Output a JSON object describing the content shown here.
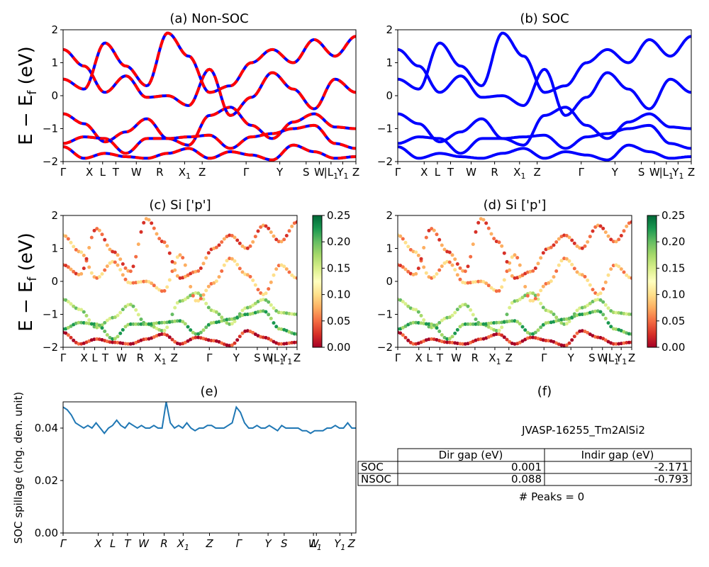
{
  "colors": {
    "nonsoc_line": "#ff0000",
    "nonsoc_dash": "#0000ff",
    "soc_line": "#0000ff",
    "spillage_line": "#1f77b4",
    "colormap": [
      "#a50026",
      "#d73027",
      "#f46d43",
      "#fdae61",
      "#fee08b",
      "#ffffbf",
      "#d9ef8b",
      "#a6d96a",
      "#66bd63",
      "#1a9850",
      "#006837"
    ]
  },
  "kpath_labels": [
    "Γ",
    "X",
    "L",
    "T",
    "W",
    "R",
    "X1",
    "Z",
    "Γ",
    "Y",
    "S",
    "W",
    "|L1",
    "Y1",
    "Z"
  ],
  "panels": {
    "a": {
      "title": "(a) Non-SOC"
    },
    "b": {
      "title": "(b) SOC"
    },
    "c": {
      "title": "(c)  Si ['p']"
    },
    "d": {
      "title": "(d) Si ['p']"
    },
    "e": {
      "title": "(e)"
    },
    "f": {
      "title": "(f)"
    }
  },
  "y_label_energy": "E − E_f (eV)",
  "chart_data": [
    {
      "panel": "a",
      "type": "line",
      "title": "(a) Non-SOC",
      "ylabel": "E − E_f (eV)",
      "ylim": [
        -2,
        2
      ],
      "yticks": [
        "2",
        "1",
        "0",
        "−1",
        "−2"
      ],
      "xtick_labels": [
        "Γ",
        "X",
        "L",
        "T",
        "W",
        "R",
        "X1",
        "Z",
        "Γ",
        "Y",
        "S",
        "W",
        "|L1",
        "Y1",
        "Z"
      ],
      "series": [
        {
          "values": [
            -0.55,
            -0.85,
            -1.4,
            -1.1,
            -0.7,
            -1.3,
            -1.5,
            -0.6,
            -0.35,
            -0.9,
            -1.3,
            -0.8,
            -0.55,
            -0.95,
            -1.0
          ]
        },
        {
          "values": [
            -1.45,
            -1.25,
            -1.3,
            -1.75,
            -1.3,
            -1.3,
            -1.25,
            -1.2,
            -1.6,
            -1.25,
            -1.15,
            -1.0,
            -0.9,
            -1.45,
            -1.6
          ]
        },
        {
          "values": [
            1.4,
            0.9,
            0.1,
            0.6,
            -0.05,
            0.0,
            -0.3,
            0.8,
            -0.6,
            -0.05,
            0.7,
            0.2,
            -0.4,
            0.5,
            0.1
          ]
        },
        {
          "values": [
            0.5,
            0.2,
            1.6,
            0.9,
            0.3,
            1.9,
            1.2,
            0.1,
            0.3,
            1.0,
            1.4,
            1.0,
            1.7,
            1.2,
            1.8
          ]
        },
        {
          "values": [
            -1.55,
            -1.9,
            -1.75,
            -1.85,
            -1.9,
            -1.75,
            -1.6,
            -1.9,
            -1.7,
            -1.8,
            -1.95,
            -1.5,
            -1.7,
            -1.9,
            -1.85
          ]
        }
      ]
    },
    {
      "panel": "b",
      "type": "line",
      "title": "(b) SOC",
      "ylim": [
        -2,
        2
      ],
      "yticks": [
        "2",
        "1",
        "0",
        "−1",
        "−2"
      ],
      "xtick_labels": [
        "Γ",
        "X",
        "L",
        "T",
        "W",
        "R",
        "X1",
        "Z",
        "Γ",
        "Y",
        "S",
        "W",
        "|L1",
        "Y1",
        "Z"
      ],
      "series": [
        {
          "values": [
            -0.55,
            -0.85,
            -1.4,
            -1.1,
            -0.7,
            -1.3,
            -1.5,
            -0.6,
            -0.35,
            -0.9,
            -1.3,
            -0.8,
            -0.55,
            -0.95,
            -1.0
          ]
        },
        {
          "values": [
            -1.45,
            -1.25,
            -1.3,
            -1.75,
            -1.3,
            -1.3,
            -1.25,
            -1.2,
            -1.6,
            -1.25,
            -1.15,
            -1.0,
            -0.9,
            -1.45,
            -1.6
          ]
        },
        {
          "values": [
            1.4,
            0.9,
            0.1,
            0.6,
            -0.05,
            0.0,
            -0.3,
            0.8,
            -0.6,
            -0.05,
            0.7,
            0.2,
            -0.4,
            0.5,
            0.1
          ]
        },
        {
          "values": [
            0.5,
            0.2,
            1.6,
            0.9,
            0.3,
            1.9,
            1.2,
            0.1,
            0.3,
            1.0,
            1.4,
            1.0,
            1.7,
            1.2,
            1.8
          ]
        },
        {
          "values": [
            -1.55,
            -1.9,
            -1.75,
            -1.85,
            -1.9,
            -1.75,
            -1.6,
            -1.9,
            -1.7,
            -1.8,
            -1.95,
            -1.5,
            -1.7,
            -1.9,
            -1.85
          ]
        }
      ]
    },
    {
      "panel": "c",
      "type": "scatter",
      "title": "(c)  Si ['p']",
      "ylabel": "E − E_f (eV)",
      "ylim": [
        -2,
        2
      ],
      "yticks": [
        "2",
        "1",
        "0",
        "−1",
        "−2"
      ],
      "xtick_labels": [
        "Γ",
        "X",
        "L",
        "T",
        "W",
        "R",
        "X1",
        "Z",
        "Γ",
        "Y",
        "S",
        "W",
        "|L1",
        "Y1",
        "Z"
      ],
      "colorbar": {
        "range": [
          0,
          0.25
        ],
        "ticks": [
          "0.25",
          "0.20",
          "0.15",
          "0.10",
          "0.05",
          "0.00"
        ]
      },
      "bands": [
        {
          "values": [
            -0.55,
            -0.85,
            -1.4,
            -1.1,
            -0.7,
            -1.3,
            -1.5,
            -0.6,
            -0.35,
            -0.9,
            -1.3,
            -0.8,
            -0.55,
            -0.95,
            -1.0
          ],
          "weight": 0.17
        },
        {
          "values": [
            -1.45,
            -1.25,
            -1.3,
            -1.75,
            -1.3,
            -1.3,
            -1.25,
            -1.2,
            -1.6,
            -1.25,
            -1.15,
            -1.0,
            -0.9,
            -1.45,
            -1.6
          ],
          "weight": 0.2
        },
        {
          "values": [
            1.4,
            0.9,
            0.1,
            0.6,
            -0.05,
            0.0,
            -0.3,
            0.8,
            -0.6,
            -0.05,
            0.7,
            0.2,
            -0.4,
            0.5,
            0.1
          ],
          "weight": 0.08
        },
        {
          "values": [
            0.5,
            0.2,
            1.6,
            0.9,
            0.3,
            1.9,
            1.2,
            0.1,
            0.3,
            1.0,
            1.4,
            1.0,
            1.7,
            1.2,
            1.8
          ],
          "weight": 0.05
        },
        {
          "values": [
            -1.55,
            -1.9,
            -1.75,
            -1.85,
            -1.9,
            -1.75,
            -1.6,
            -1.9,
            -1.7,
            -1.8,
            -1.95,
            -1.5,
            -1.7,
            -1.9,
            -1.85
          ],
          "weight": 0.02
        }
      ]
    },
    {
      "panel": "d",
      "type": "scatter",
      "title": "(d) Si ['p']",
      "ylim": [
        -2,
        2
      ],
      "yticks": [
        "2",
        "1",
        "0",
        "−1",
        "−2"
      ],
      "xtick_labels": [
        "Γ",
        "X",
        "L",
        "T",
        "W",
        "R",
        "X1",
        "Z",
        "Γ",
        "Y",
        "S",
        "W",
        "|L1",
        "Y1",
        "Z"
      ],
      "colorbar": {
        "range": [
          0,
          0.25
        ],
        "ticks": [
          "0.25",
          "0.20",
          "0.15",
          "0.10",
          "0.05",
          "0.00"
        ]
      },
      "bands": [
        {
          "values": [
            -0.55,
            -0.85,
            -1.4,
            -1.1,
            -0.7,
            -1.3,
            -1.5,
            -0.6,
            -0.35,
            -0.9,
            -1.3,
            -0.8,
            -0.55,
            -0.95,
            -1.0
          ],
          "weight": 0.17
        },
        {
          "values": [
            -1.45,
            -1.25,
            -1.3,
            -1.75,
            -1.3,
            -1.3,
            -1.25,
            -1.2,
            -1.6,
            -1.25,
            -1.15,
            -1.0,
            -0.9,
            -1.45,
            -1.6
          ],
          "weight": 0.2
        },
        {
          "values": [
            1.4,
            0.9,
            0.1,
            0.6,
            -0.05,
            0.0,
            -0.3,
            0.8,
            -0.6,
            -0.05,
            0.7,
            0.2,
            -0.4,
            0.5,
            0.1
          ],
          "weight": 0.08
        },
        {
          "values": [
            0.5,
            0.2,
            1.6,
            0.9,
            0.3,
            1.9,
            1.2,
            0.1,
            0.3,
            1.0,
            1.4,
            1.0,
            1.7,
            1.2,
            1.8
          ],
          "weight": 0.05
        },
        {
          "values": [
            -1.55,
            -1.9,
            -1.75,
            -1.85,
            -1.9,
            -1.75,
            -1.6,
            -1.9,
            -1.7,
            -1.8,
            -1.95,
            -1.5,
            -1.7,
            -1.9,
            -1.85
          ],
          "weight": 0.02
        }
      ]
    },
    {
      "panel": "e",
      "type": "line",
      "title": "(e)",
      "ylabel": "SOC spillage (chg. den. unit)",
      "ylim": [
        0,
        0.05
      ],
      "yticks": [
        "0.04",
        "0.02",
        "0.00"
      ],
      "xtick_labels": [
        "Γ",
        "X",
        "L",
        "T",
        "W",
        "R",
        "X1",
        "Z",
        "Γ",
        "Y",
        "S",
        "W",
        "L1",
        "Y1",
        "Z"
      ],
      "series": [
        {
          "values": [
            0.048,
            0.047,
            0.045,
            0.042,
            0.041,
            0.04,
            0.041,
            0.04,
            0.042,
            0.04,
            0.038,
            0.04,
            0.041,
            0.043,
            0.041,
            0.04,
            0.042,
            0.041,
            0.04,
            0.041,
            0.04,
            0.04,
            0.041,
            0.04,
            0.04,
            0.051,
            0.042,
            0.04,
            0.041,
            0.04,
            0.042,
            0.04,
            0.039,
            0.04,
            0.04,
            0.041,
            0.041,
            0.04,
            0.04,
            0.04,
            0.041,
            0.042,
            0.048,
            0.046,
            0.042,
            0.04,
            0.04,
            0.041,
            0.04,
            0.04,
            0.041,
            0.04,
            0.039,
            0.041,
            0.04,
            0.04,
            0.04,
            0.04,
            0.039,
            0.039,
            0.038,
            0.039,
            0.039,
            0.039,
            0.04,
            0.04,
            0.041,
            0.04,
            0.04,
            0.042,
            0.04,
            0.04
          ]
        }
      ]
    }
  ],
  "table": {
    "jid": "JVASP-16255_Tm2AlSi2",
    "headers": [
      "",
      "Dir gap (eV)",
      "Indir gap (eV)"
    ],
    "rows": [
      {
        "label": "SOC",
        "dir": "0.001",
        "indir": "-2.171"
      },
      {
        "label": "NSOC",
        "dir": "0.088",
        "indir": "-0.793"
      }
    ],
    "peaks": "# Peaks = 0"
  }
}
